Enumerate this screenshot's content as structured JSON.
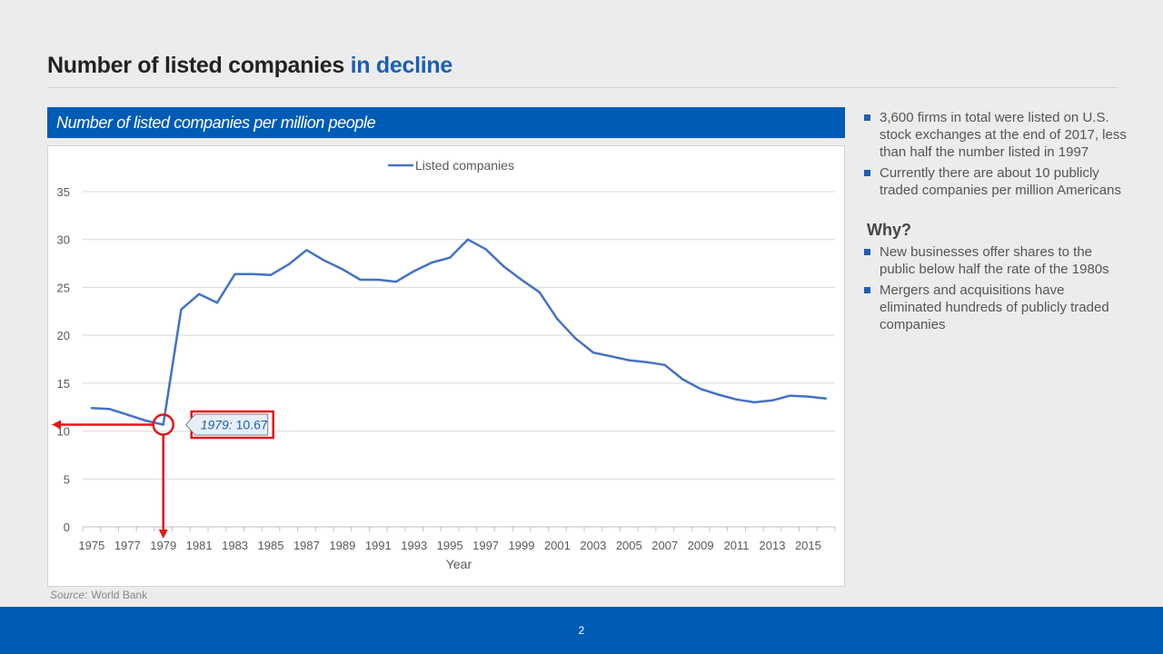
{
  "slide": {
    "title_main": "Number of listed companies",
    "title_accent": "in decline",
    "page_number": "2"
  },
  "source": {
    "label": "Source:",
    "value": "World Bank"
  },
  "bullets_top": [
    "3,600 firms in total were listed on U.S. stock exchanges at the end of 2017, less than half the number listed in 1997",
    "Currently there are about 10 publicly traded companies per million Americans"
  ],
  "why_heading": "Why?",
  "bullets_why": [
    "New businesses offer shares to the public below half the rate of the 1980s",
    "Mergers and acquisitions have eliminated hundreds of publicly traded companies"
  ],
  "colors": {
    "brand_blue": "#005bb5",
    "series_line": "#4472c4",
    "highlight_red": "#e3161b"
  },
  "chart_data": {
    "type": "line",
    "title": "Number of listed companies per million people",
    "xlabel": "Year",
    "ylabel": "",
    "ylim": [
      0,
      35
    ],
    "yticks": [
      0,
      5,
      10,
      15,
      20,
      25,
      30,
      35
    ],
    "xticks": [
      1975,
      1977,
      1979,
      1981,
      1983,
      1985,
      1987,
      1989,
      1991,
      1993,
      1995,
      1997,
      1999,
      2001,
      2003,
      2005,
      2007,
      2009,
      2011,
      2013,
      2015
    ],
    "grid": true,
    "legend_position": "top-center",
    "x": [
      1975,
      1976,
      1977,
      1978,
      1979,
      1980,
      1981,
      1982,
      1983,
      1984,
      1985,
      1986,
      1987,
      1988,
      1989,
      1990,
      1991,
      1992,
      1993,
      1994,
      1995,
      1996,
      1997,
      1998,
      1999,
      2000,
      2001,
      2002,
      2003,
      2004,
      2005,
      2006,
      2007,
      2008,
      2009,
      2010,
      2011,
      2012,
      2013,
      2014,
      2015,
      2016
    ],
    "series": [
      {
        "name": "Listed companies",
        "values": [
          12.4,
          12.3,
          11.7,
          11.1,
          10.67,
          22.7,
          24.3,
          23.4,
          26.4,
          26.4,
          26.3,
          27.4,
          28.9,
          27.8,
          26.9,
          25.8,
          25.8,
          25.6,
          26.7,
          27.6,
          28.1,
          30.0,
          29.0,
          27.2,
          25.8,
          24.5,
          21.7,
          19.7,
          18.2,
          17.8,
          17.4,
          17.2,
          16.9,
          15.4,
          14.4,
          13.8,
          13.3,
          13.0,
          13.2,
          13.7,
          13.6,
          13.4
        ]
      }
    ],
    "annotation": {
      "year": 1979,
      "value": 10.67,
      "label_year": "1979:",
      "label_value": "10.67"
    }
  }
}
